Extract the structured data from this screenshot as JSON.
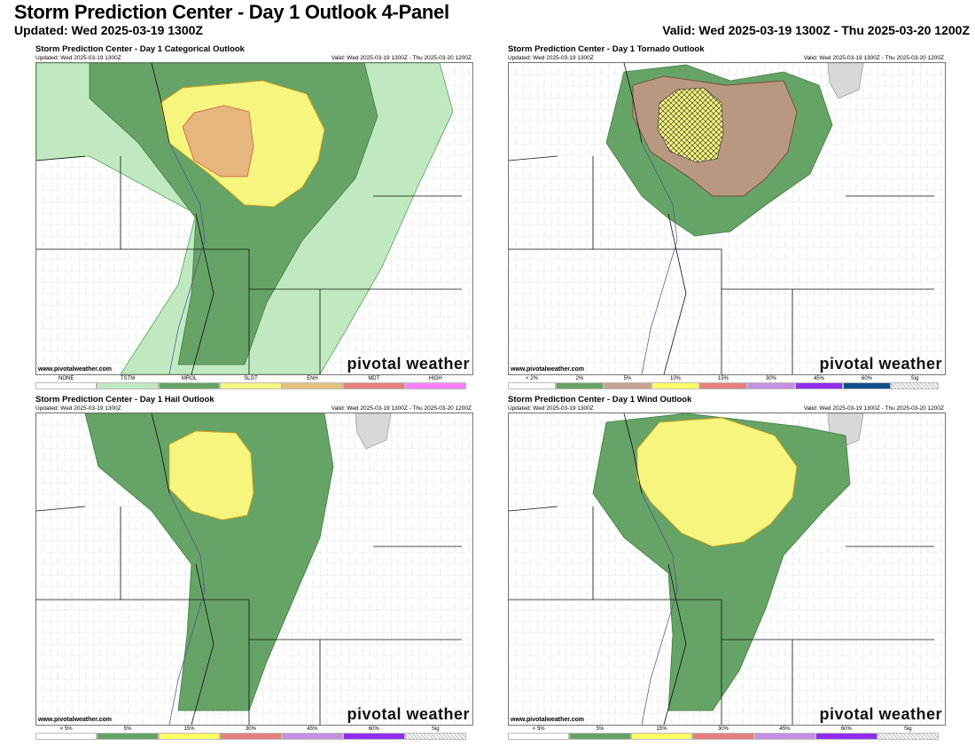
{
  "header": {
    "title": "Storm Prediction Center - Day 1 Outlook 4-Panel",
    "updated": "Updated: Wed 2025-03-19 1300Z",
    "valid": "Valid: Wed 2025-03-19 1300Z - Thu 2025-03-20 1200Z"
  },
  "panels": [
    {
      "title": "Storm Prediction Center - Day 1 Categorical Outlook",
      "updated": "Updated: Wed 2025-03-19 1300Z",
      "valid": "Valid: Wed 2025-03-19 1300Z - Thu 2025-03-20 1200Z",
      "site_url": "www.pivotalweather.com",
      "brand": "pivotal weather",
      "legend": [
        {
          "label": "NONE",
          "color": "#ffffff"
        },
        {
          "label": "TSTM",
          "color": "#c1e9c1"
        },
        {
          "label": "MRGL",
          "color": "#66a366"
        },
        {
          "label": "SLGT",
          "color": "#f6f67f"
        },
        {
          "label": "ENH",
          "color": "#e6c27f"
        },
        {
          "label": "MDT",
          "color": "#e67f7f"
        },
        {
          "label": "HIGH",
          "color": "#ff80ff"
        }
      ]
    },
    {
      "title": "Storm Prediction Center - Day 1 Tornado Outlook",
      "updated": "Updated: Wed 2025-03-19 1300Z",
      "valid": "Valid: Wed 2025-03-19 1300Z - Thu 2025-03-20 1200Z",
      "site_url": "www.pivotalweather.com",
      "brand": "pivotal weather",
      "legend": [
        {
          "label": "< 2%",
          "color": "#ffffff"
        },
        {
          "label": "2%",
          "color": "#66a366"
        },
        {
          "label": "5%",
          "color": "#c6a393"
        },
        {
          "label": "10%",
          "color": "#ffff66"
        },
        {
          "label": "15%",
          "color": "#e67f7f"
        },
        {
          "label": "30%",
          "color": "#c58fe6"
        },
        {
          "label": "45%",
          "color": "#912cee"
        },
        {
          "label": "60%",
          "color": "#104e8b"
        },
        {
          "label": "Sig",
          "color": "hatch"
        }
      ]
    },
    {
      "title": "Storm Prediction Center - Day 1 Hail Outlook",
      "updated": "Updated: Wed 2025-03-19 1300Z",
      "valid": "Valid: Wed 2025-03-19 1300Z - Thu 2025-03-20 1200Z",
      "site_url": "www.pivotalweather.com",
      "brand": "pivotal weather",
      "legend": [
        {
          "label": "< 5%",
          "color": "#ffffff"
        },
        {
          "label": "5%",
          "color": "#66a366"
        },
        {
          "label": "15%",
          "color": "#ffff66"
        },
        {
          "label": "30%",
          "color": "#e67f7f"
        },
        {
          "label": "45%",
          "color": "#c58fe6"
        },
        {
          "label": "60%",
          "color": "#912cee"
        },
        {
          "label": "Sig",
          "color": "hatch"
        }
      ]
    },
    {
      "title": "Storm Prediction Center - Day 1 Wind Outlook",
      "updated": "Updated: Wed 2025-03-19 1300Z",
      "valid": "Valid: Wed 2025-03-19 1300Z - Thu 2025-03-20 1200Z",
      "site_url": "www.pivotalweather.com",
      "brand": "pivotal weather",
      "legend": [
        {
          "label": "< 5%",
          "color": "#ffffff"
        },
        {
          "label": "5%",
          "color": "#66a366"
        },
        {
          "label": "15%",
          "color": "#ffff66"
        },
        {
          "label": "30%",
          "color": "#e67f7f"
        },
        {
          "label": "45%",
          "color": "#c58fe6"
        },
        {
          "label": "60%",
          "color": "#912cee"
        },
        {
          "label": "Sig",
          "color": "hatch"
        }
      ]
    }
  ]
}
